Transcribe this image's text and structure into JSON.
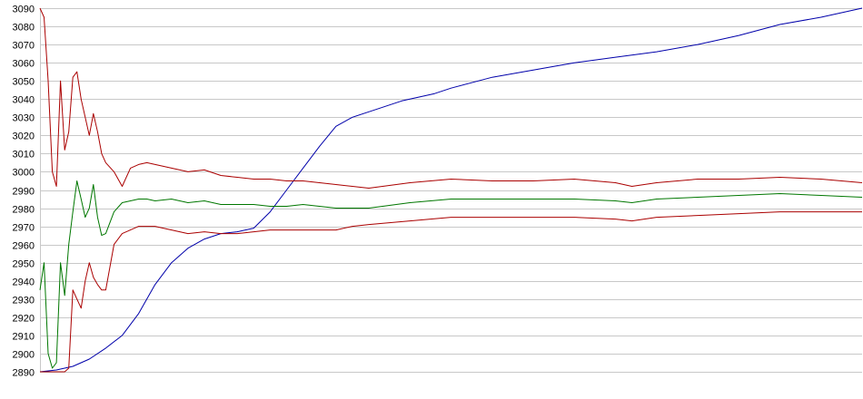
{
  "chart_data": {
    "type": "line",
    "title": "",
    "xlabel": "",
    "ylabel": "",
    "ylim": [
      2890,
      3090
    ],
    "yticks": [
      2890,
      2900,
      2910,
      2920,
      2930,
      2940,
      2950,
      2960,
      2970,
      2980,
      2990,
      3000,
      3010,
      3020,
      3030,
      3040,
      3050,
      3060,
      3070,
      3080,
      3090
    ],
    "xlim": [
      0,
      100
    ],
    "grid": true,
    "legend": "none",
    "series": [
      {
        "color": "#0000aa",
        "x": [
          0,
          2,
          4,
          6,
          8,
          10,
          12,
          14,
          16,
          18,
          20,
          22,
          24,
          26,
          28,
          30,
          32,
          34,
          36,
          38,
          40,
          42,
          44,
          46,
          48,
          50,
          55,
          60,
          65,
          70,
          75,
          80,
          85,
          90,
          95,
          100
        ],
        "values": [
          2890,
          2891,
          2893,
          2897,
          2903,
          2910,
          2922,
          2938,
          2950,
          2958,
          2963,
          2966,
          2967,
          2969,
          2978,
          2990,
          3002,
          3014,
          3025,
          3030,
          3033,
          3036,
          3039,
          3041,
          3043,
          3046,
          3052,
          3056,
          3060,
          3063,
          3066,
          3070,
          3075,
          3081,
          3085,
          3090
        ]
      },
      {
        "color": "#aa0000",
        "x": [
          0,
          0.5,
          1,
          1.5,
          2,
          2.5,
          3,
          3.5,
          4,
          4.5,
          5,
          5.5,
          6,
          6.5,
          7,
          7.5,
          8,
          9,
          10,
          11,
          12,
          13,
          14,
          16,
          18,
          20,
          22,
          24,
          26,
          28,
          30,
          32,
          34,
          36,
          38,
          40,
          45,
          50,
          55,
          60,
          65,
          70,
          72,
          75,
          80,
          85,
          90,
          95,
          100
        ],
        "values": [
          3090,
          3085,
          3050,
          3000,
          2992,
          3050,
          3012,
          3022,
          3052,
          3055,
          3040,
          3030,
          3020,
          3032,
          3022,
          3010,
          3005,
          3000,
          2992,
          3002,
          3004,
          3005,
          3004,
          3002,
          3000,
          3001,
          2998,
          2997,
          2996,
          2996,
          2995,
          2995,
          2994,
          2993,
          2992,
          2991,
          2994,
          2996,
          2995,
          2995,
          2996,
          2994,
          2992,
          2994,
          2996,
          2996,
          2997,
          2996,
          2994
        ]
      },
      {
        "color": "#007700",
        "x": [
          0,
          0.5,
          1,
          1.5,
          2,
          2.5,
          3,
          3.5,
          4,
          4.5,
          5,
          5.5,
          6,
          6.5,
          7,
          7.5,
          8,
          9,
          10,
          11,
          12,
          13,
          14,
          16,
          18,
          20,
          22,
          24,
          26,
          28,
          30,
          32,
          34,
          36,
          38,
          40,
          45,
          50,
          55,
          60,
          65,
          70,
          72,
          75,
          80,
          85,
          90,
          95,
          100
        ],
        "values": [
          2935,
          2950,
          2900,
          2892,
          2895,
          2950,
          2932,
          2960,
          2978,
          2995,
          2985,
          2975,
          2980,
          2993,
          2975,
          2965,
          2966,
          2978,
          2983,
          2984,
          2985,
          2985,
          2984,
          2985,
          2983,
          2984,
          2982,
          2982,
          2982,
          2981,
          2981,
          2982,
          2981,
          2980,
          2980,
          2980,
          2983,
          2985,
          2985,
          2985,
          2985,
          2984,
          2983,
          2985,
          2986,
          2987,
          2988,
          2987,
          2986
        ]
      },
      {
        "color": "#aa0000",
        "x": [
          0,
          0.5,
          1,
          1.5,
          2,
          2.5,
          3,
          3.5,
          4,
          4.5,
          5,
          5.5,
          6,
          6.5,
          7,
          7.5,
          8,
          9,
          10,
          11,
          12,
          13,
          14,
          16,
          18,
          20,
          22,
          24,
          26,
          28,
          30,
          32,
          34,
          36,
          38,
          40,
          45,
          50,
          55,
          60,
          65,
          70,
          72,
          75,
          80,
          85,
          90,
          95,
          100
        ],
        "values": [
          2890,
          2890,
          2890,
          2890,
          2890,
          2890,
          2890,
          2892,
          2935,
          2930,
          2925,
          2940,
          2950,
          2942,
          2938,
          2935,
          2935,
          2960,
          2966,
          2968,
          2970,
          2970,
          2970,
          2968,
          2966,
          2967,
          2966,
          2966,
          2967,
          2968,
          2968,
          2968,
          2968,
          2968,
          2970,
          2971,
          2973,
          2975,
          2975,
          2975,
          2975,
          2974,
          2973,
          2975,
          2976,
          2977,
          2978,
          2978,
          2978
        ]
      }
    ]
  }
}
